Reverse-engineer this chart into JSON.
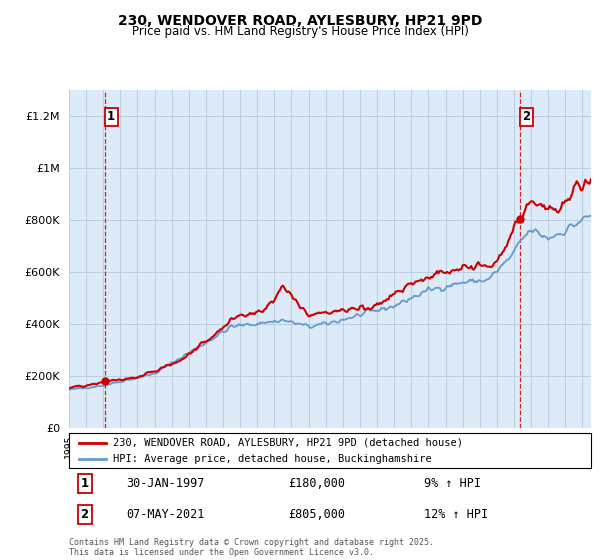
{
  "title": "230, WENDOVER ROAD, AYLESBURY, HP21 9PD",
  "subtitle": "Price paid vs. HM Land Registry's House Price Index (HPI)",
  "ylim": [
    0,
    1300000
  ],
  "yticks": [
    0,
    200000,
    400000,
    600000,
    800000,
    1000000,
    1200000
  ],
  "ytick_labels": [
    "£0",
    "£200K",
    "£400K",
    "£600K",
    "£800K",
    "£1M",
    "£1.2M"
  ],
  "sale1_date_label": "30-JAN-1997",
  "sale1_price": 180000,
  "sale1_pct": "9% ↑ HPI",
  "sale2_date_label": "07-MAY-2021",
  "sale2_price": 805000,
  "sale2_pct": "12% ↑ HPI",
  "sale1_x": 1997.08,
  "sale2_x": 2021.35,
  "line_color_property": "#cc0000",
  "line_color_hpi": "#6699cc",
  "bg_color": "#ddeaf7",
  "grid_color": "#b8cfe0",
  "legend_label_property": "230, WENDOVER ROAD, AYLESBURY, HP21 9PD (detached house)",
  "legend_label_hpi": "HPI: Average price, detached house, Buckinghamshire",
  "footer": "Contains HM Land Registry data © Crown copyright and database right 2025.\nThis data is licensed under the Open Government Licence v3.0.",
  "xmin": 1995,
  "xmax": 2025.5
}
